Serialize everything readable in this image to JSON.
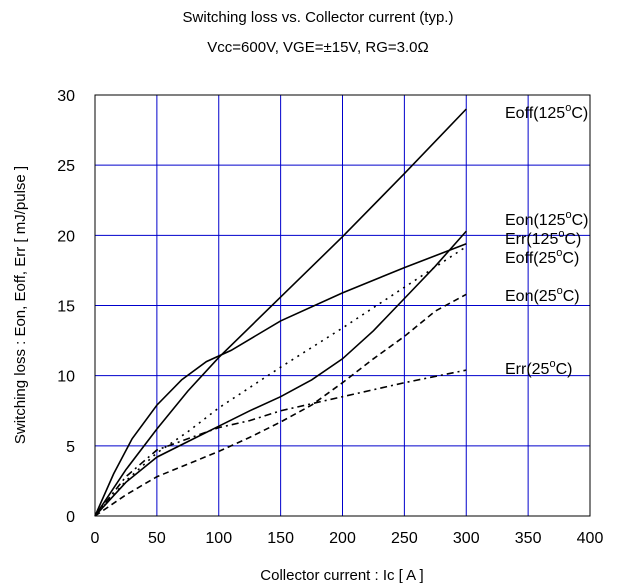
{
  "chart_data": {
    "type": "line",
    "title": "Switching loss vs. Collector current (typ.)",
    "subtitle": "Vcc=600V, VGE=±15V, RG=3.0Ω",
    "xlabel": "Collector current : Ic [ A ]",
    "ylabel": "Switching loss : Eon, Eoff, Err [ mJ/pulse ]",
    "xlim": [
      0,
      400
    ],
    "ylim": [
      0,
      30
    ],
    "xticks": [
      0,
      50,
      100,
      150,
      200,
      250,
      300,
      350,
      400
    ],
    "yticks": [
      0,
      5,
      10,
      15,
      20,
      25,
      30
    ],
    "grid": true,
    "colors": {
      "grid": "#0000cc",
      "axis": "#000000",
      "series": "#000000"
    },
    "series": [
      {
        "name": "Eoff(125°C)",
        "dash": "solid",
        "x": [
          0,
          25,
          50,
          75,
          100,
          150,
          200,
          250,
          300
        ],
        "y": [
          0,
          3.3,
          6.2,
          8.9,
          11.3,
          15.6,
          19.9,
          24.4,
          29.0
        ]
      },
      {
        "name": "Eon(125°C)",
        "dash": "solid",
        "x": [
          0,
          25,
          50,
          75,
          100,
          125,
          150,
          175,
          200,
          225,
          250,
          275,
          300
        ],
        "y": [
          0,
          2.4,
          4.2,
          5.3,
          6.4,
          7.5,
          8.5,
          9.7,
          11.2,
          13.2,
          15.5,
          17.8,
          20.3
        ]
      },
      {
        "name": "Err(125°C)",
        "dash": "dot",
        "x": [
          0,
          25,
          50,
          75,
          100,
          150,
          200,
          250,
          300
        ],
        "y": [
          0,
          2.5,
          4.5,
          6.0,
          7.7,
          10.6,
          13.4,
          16.3,
          19.2
        ]
      },
      {
        "name": "Eoff(25°C)",
        "dash": "solid",
        "x": [
          0,
          15,
          30,
          50,
          70,
          90,
          110,
          150,
          200,
          250,
          300
        ],
        "y": [
          0,
          3.0,
          5.5,
          7.9,
          9.7,
          11.0,
          11.8,
          13.9,
          15.9,
          17.7,
          19.4
        ]
      },
      {
        "name": "Eon(25°C)",
        "dash": "dash",
        "x": [
          0,
          25,
          50,
          75,
          100,
          125,
          150,
          175,
          200,
          225,
          250,
          275,
          300
        ],
        "y": [
          0,
          1.5,
          2.8,
          3.7,
          4.6,
          5.6,
          6.7,
          7.9,
          9.5,
          11.2,
          12.8,
          14.6,
          15.8
        ]
      },
      {
        "name": "Err(25°C)",
        "dash": "dashdot",
        "x": [
          0,
          25,
          50,
          75,
          100,
          125,
          150,
          200,
          250,
          300
        ],
        "y": [
          0,
          2.8,
          4.7,
          5.5,
          6.3,
          6.8,
          7.5,
          8.5,
          9.5,
          10.4
        ]
      }
    ],
    "labels": [
      {
        "base": "Eoff(125",
        "sup": "o",
        "unit": "C)"
      },
      {
        "base": "Eon(125",
        "sup": "o",
        "unit": "C)"
      },
      {
        "base": "Err(125",
        "sup": "o",
        "unit": "C)"
      },
      {
        "base": "Eoff(25",
        "sup": "o",
        "unit": "C)"
      },
      {
        "base": "Eon(25",
        "sup": "o",
        "unit": "C)"
      },
      {
        "base": "Err(25",
        "sup": "o",
        "unit": "C)"
      }
    ]
  }
}
